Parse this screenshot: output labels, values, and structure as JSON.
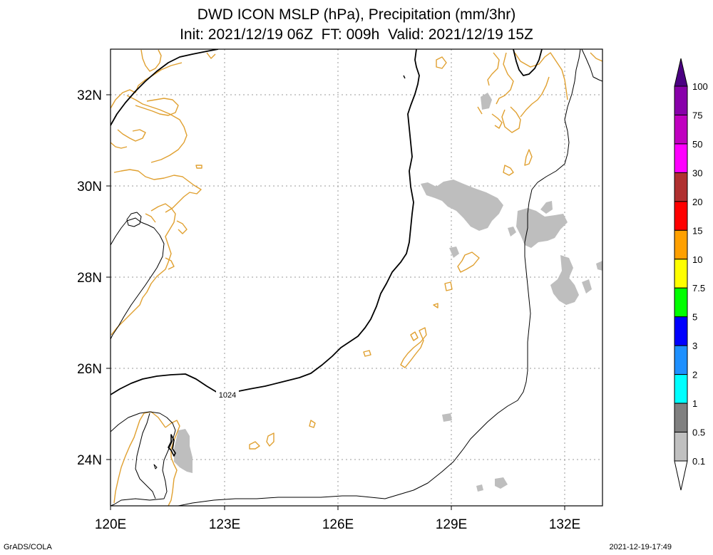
{
  "title": {
    "line1": "DWD ICON MSLP (hPa), Precipitation (mm/3hr)",
    "line2": "Init: 2021/12/19 06Z  FT: 009h  Valid: 2021/12/19 15Z"
  },
  "map": {
    "lon_range": [
      120,
      133
    ],
    "lat_range": [
      23,
      33
    ],
    "x_ticks": [
      "120E",
      "123E",
      "126E",
      "129E",
      "132E"
    ],
    "y_ticks": [
      "24N",
      "26N",
      "28N",
      "30N",
      "32N"
    ],
    "isobar_label": "1024",
    "coastline_color": "#e0a030",
    "precip_color": "#bebebe",
    "grid": true
  },
  "colorbar": {
    "labels": [
      "100",
      "75",
      "50",
      "30",
      "20",
      "15",
      "10",
      "7.5",
      "5",
      "3",
      "2",
      "1",
      "0.5",
      "0.1"
    ],
    "colors": [
      "#8800aa",
      "#c000c0",
      "#ff00ff",
      "#b03030",
      "#ff0000",
      "#ffa000",
      "#ffff00",
      "#00ff00",
      "#0000ff",
      "#1e90ff",
      "#00ffff",
      "#808080",
      "#c0c0c0"
    ],
    "top_arrow_color": "#4b0082",
    "bottom_arrow_color": "#ffffff"
  },
  "footer": {
    "left": "GrADS/COLA",
    "right": "2021-12-19-17:49"
  }
}
